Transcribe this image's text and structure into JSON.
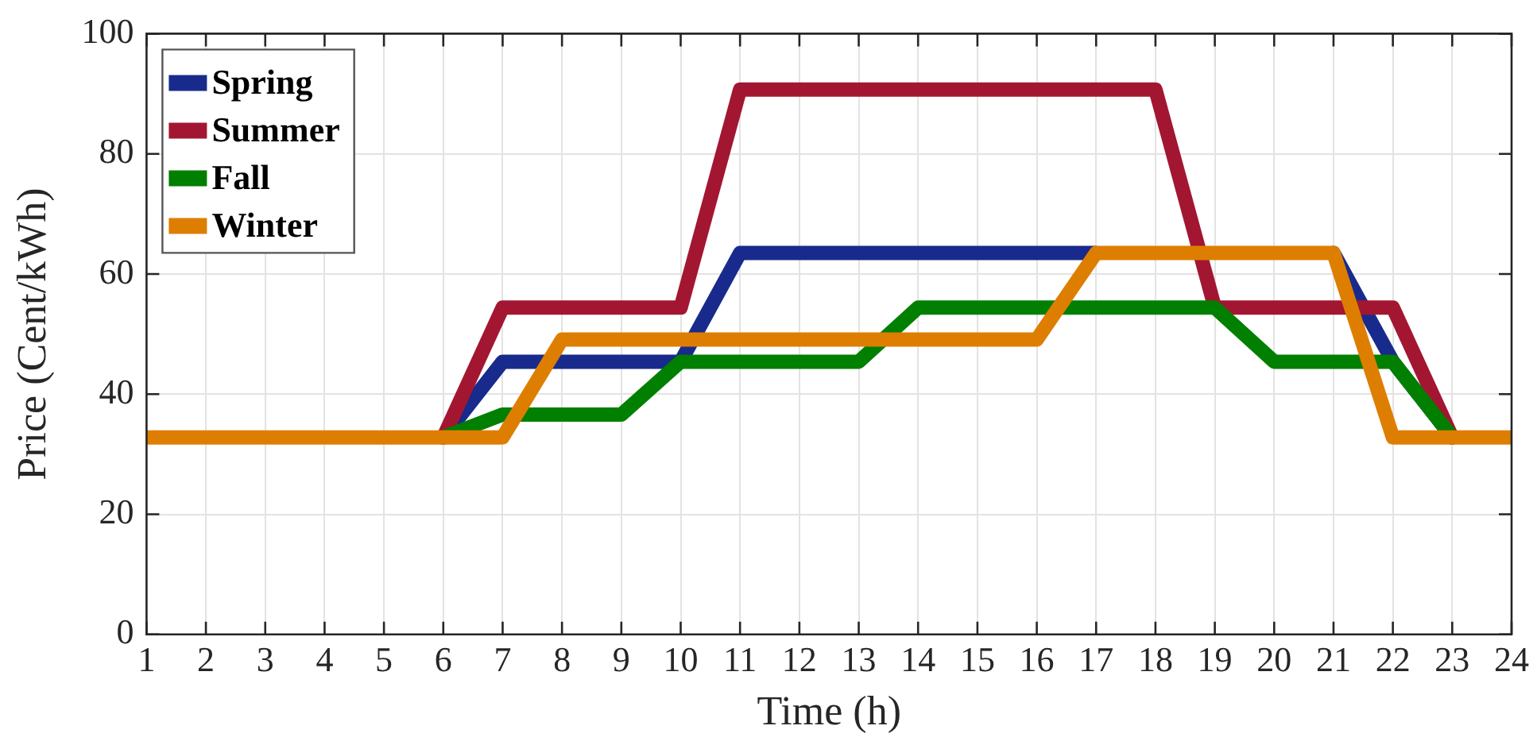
{
  "chart_data": {
    "type": "line",
    "xlabel": "Time (h)",
    "ylabel": "Price (Cent/kWh)",
    "x": [
      1,
      2,
      3,
      4,
      5,
      6,
      7,
      8,
      9,
      10,
      11,
      12,
      13,
      14,
      15,
      16,
      17,
      18,
      19,
      20,
      21,
      22,
      23,
      24
    ],
    "series": [
      {
        "name": "Spring",
        "color": "#182b8c",
        "values": [
          null,
          null,
          null,
          null,
          null,
          32.8,
          45.4,
          45.4,
          45.4,
          45.4,
          63.5,
          63.5,
          63.5,
          63.5,
          63.5,
          63.5,
          63.5,
          null,
          null,
          null,
          63.5,
          45.4,
          32.8,
          null
        ]
      },
      {
        "name": "Summer",
        "color": "#a31631",
        "values": [
          null,
          null,
          null,
          null,
          null,
          32.8,
          54.4,
          54.4,
          54.4,
          54.4,
          90.7,
          90.7,
          90.7,
          90.7,
          90.7,
          90.7,
          90.7,
          90.7,
          54.4,
          54.4,
          54.4,
          54.4,
          32.8,
          null
        ]
      },
      {
        "name": "Fall",
        "color": "#007f00",
        "values": [
          null,
          null,
          null,
          null,
          null,
          32.8,
          36.6,
          36.6,
          36.6,
          45.4,
          45.4,
          45.4,
          45.4,
          54.4,
          54.4,
          54.4,
          54.4,
          54.4,
          54.4,
          45.4,
          45.4,
          45.4,
          32.8,
          null
        ]
      },
      {
        "name": "Winter",
        "color": "#de7e00",
        "values": [
          32.8,
          32.8,
          32.8,
          32.8,
          32.8,
          32.8,
          32.8,
          49.1,
          49.1,
          49.1,
          49.1,
          49.1,
          49.1,
          49.1,
          49.1,
          49.1,
          63.5,
          63.5,
          63.5,
          63.5,
          63.5,
          32.8,
          32.8,
          32.8
        ]
      }
    ],
    "xlim": [
      1,
      24
    ],
    "xticks": [
      1,
      2,
      3,
      4,
      5,
      6,
      7,
      8,
      9,
      10,
      11,
      12,
      13,
      14,
      15,
      16,
      17,
      18,
      19,
      20,
      21,
      22,
      23,
      24
    ],
    "ylim": [
      0,
      100
    ],
    "yticks": [
      0,
      20,
      40,
      60,
      80,
      100
    ],
    "grid": true,
    "legend": "top left",
    "marker": "none",
    "line_style": "solid"
  }
}
